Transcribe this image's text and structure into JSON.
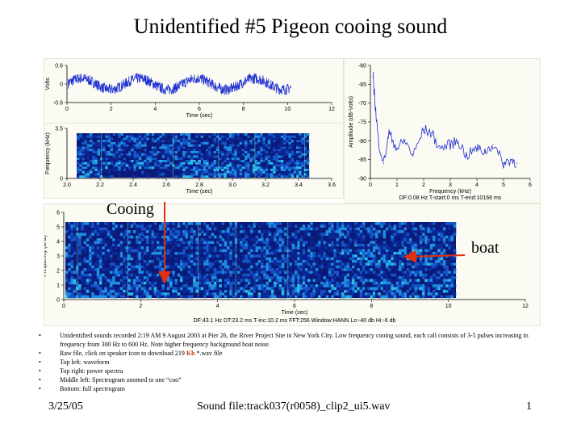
{
  "slide": {
    "title": "Unidentified #5 Pigeon cooing sound",
    "annotations": {
      "cooing": "Cooing",
      "boat": "boat"
    },
    "bullets": [
      "Unidentified sounds recorded 2:19 AM 9 August 2003 at Pier 26, the River Project Site in New York City. Low frequency cooing sound, each call consists of 3-5 pulses increasing in frequency from 300 Hz to 600 Hz. Note higher frequency background boat noise.",
      "Raw file, click on speaker icon to download 219",
      "Top left: waveform",
      "Top right: power spectra",
      "Middle left: Spectrogram zoomed to one “coo”",
      "Bottom: full spectrogram"
    ],
    "bullet2_kb": "Kb",
    "bullet2_suffix": " *.wav file",
    "footer": {
      "date": "3/25/05",
      "file": "Sound file:track037(r0058)_clip2_ui5.wav",
      "page": "1"
    }
  },
  "colors": {
    "trace": "#1f2fd0",
    "arrow": "#e03010",
    "spec_bg": "#0a1a78"
  },
  "chart_data": [
    {
      "type": "line",
      "name_on_image": "waveform",
      "xlabel": "Time (sec)",
      "ylabel": "Volts",
      "xlim": [
        0,
        12
      ],
      "ylim": [
        -0.6,
        0.6
      ],
      "x_ticks": [
        "0",
        "2",
        "4",
        "6",
        "8",
        "10",
        "12"
      ],
      "y_ticks": [
        "0.6",
        "0",
        "-0.6"
      ]
    },
    {
      "type": "heatmap",
      "name_on_image": "zoomed spectrogram",
      "xlabel": "Time (sec)",
      "ylabel": "Frequency (kHz)",
      "xlim": [
        2.0,
        3.6
      ],
      "ylim": [
        0,
        3.5
      ],
      "x_ticks": [
        "2.0",
        "2.2",
        "2.4",
        "2.6",
        "2.8",
        "3.0",
        "3.2",
        "3.4",
        "3.6"
      ],
      "y_ticks": [
        "3.5",
        "0"
      ]
    },
    {
      "type": "line",
      "name_on_image": "power spectrum",
      "xlabel": "Frequency (kHz)",
      "ylabel": "Amplitude (dB-Volts)",
      "xlim": [
        0,
        6
      ],
      "ylim": [
        -90,
        -60
      ],
      "x_ticks": [
        "0",
        "1",
        "2",
        "3",
        "4",
        "5",
        "6"
      ],
      "y_ticks": [
        "-60",
        "-65",
        "-70",
        "-75",
        "-80",
        "-85",
        "-90"
      ],
      "x": [
        0.1,
        0.2,
        0.3,
        0.5,
        0.7,
        1.0,
        1.3,
        1.6,
        2.0,
        2.3,
        2.6,
        3.0,
        3.3,
        3.6,
        4.0,
        4.3,
        4.6,
        5.0,
        5.3,
        5.5
      ],
      "y": [
        -63,
        -72,
        -80,
        -86,
        -78,
        -82,
        -80,
        -84,
        -77,
        -78,
        -82,
        -81,
        -80,
        -84,
        -82,
        -83,
        -81,
        -86,
        -85,
        -86
      ],
      "info": "DF:0.08 Hz   T-start:0 ms   T-end:10166 ms"
    },
    {
      "type": "heatmap",
      "name_on_image": "full spectrogram",
      "xlabel": "Time (sec)",
      "ylabel": "Frequency (kHz)",
      "xlim": [
        0,
        12
      ],
      "ylim": [
        0,
        6
      ],
      "x_ticks": [
        "0",
        "2",
        "4",
        "6",
        "8",
        "10",
        "12"
      ],
      "y_ticks": [
        "6",
        "5",
        "4",
        "3",
        "2",
        "1",
        "0"
      ],
      "info": "DF:43.1 Hz   DT:23.2 ms   T-inc:10.2 ms   FFT:256   Window:HANN   Lo:-40 db   Hi:-6 db"
    }
  ]
}
